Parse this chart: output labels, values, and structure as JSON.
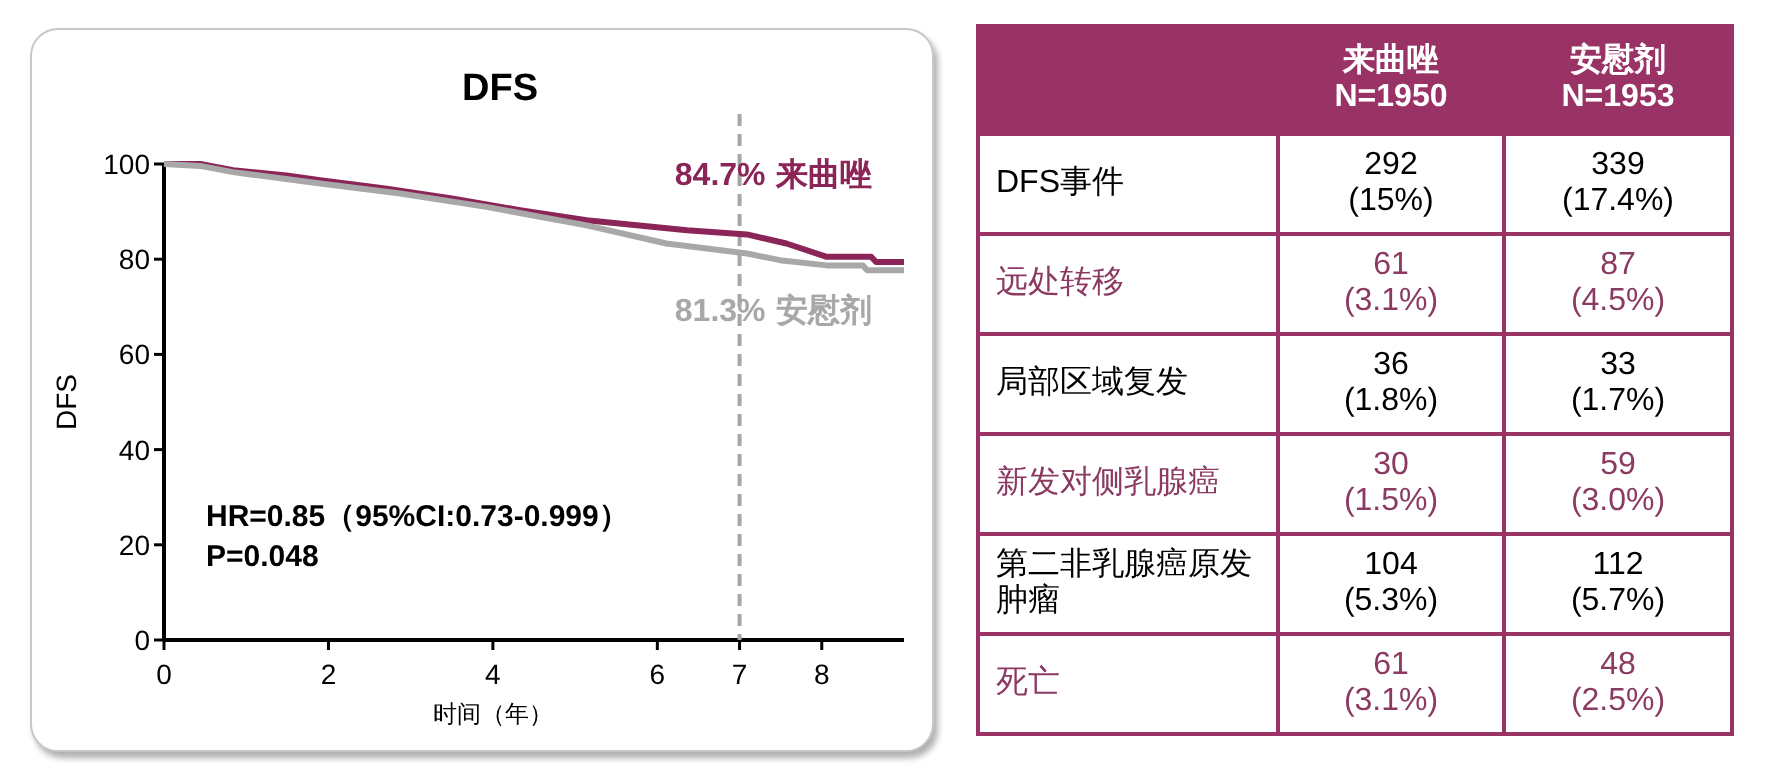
{
  "chart_data": [
    {
      "type": "line",
      "title": "DFS",
      "xlabel": "时间（年）",
      "ylabel": "DFS",
      "xlim": [
        0,
        9
      ],
      "ylim": [
        0,
        100
      ],
      "xticks": [
        0,
        2,
        4,
        6,
        7,
        8
      ],
      "yticks": [
        0,
        20,
        40,
        60,
        80,
        100
      ],
      "series": [
        {
          "name": "来曲唑",
          "color": "#8b2557",
          "x": [
            0,
            0.44,
            0.84,
            1.49,
            1.9,
            2.71,
            3.52,
            4.33,
            5.14,
            6.36,
            7.09,
            7.57,
            8.06,
            8.6,
            8.66,
            9.0
          ],
          "values": [
            100,
            100,
            98.7,
            97.6,
            96.6,
            94.8,
            92.7,
            90.3,
            88.2,
            86.1,
            85.2,
            83.3,
            80.5,
            80.5,
            79.4,
            79.4
          ]
        },
        {
          "name": "安慰剂",
          "color": "#a8a8a8",
          "x": [
            0,
            0.44,
            0.84,
            1.9,
            2.87,
            3.92,
            5.14,
            6.11,
            7.09,
            7.49,
            8.06,
            8.5,
            8.55,
            9.0
          ],
          "values": [
            100,
            99.6,
            98.3,
            95.9,
            93.8,
            91.0,
            87.1,
            83.3,
            81.2,
            79.8,
            78.7,
            78.7,
            77.7,
            77.7
          ]
        }
      ],
      "ref_lines": [
        {
          "axis": "x",
          "value": 7,
          "color": "#a6a6a6",
          "line_style": "dashed"
        }
      ],
      "annotations": [
        {
          "text": "84.7%",
          "x": 7,
          "y": 84.7
        },
        {
          "text": "81.3%",
          "x": 7,
          "y": 81.3
        },
        "HR=0.85（95%CI:0.73-0.999）",
        "P=0.048"
      ]
    },
    {
      "type": "other",
      "categories": [
        "来曲唑 N=1950",
        "安慰剂 N=1953"
      ],
      "y_categories": [
        "DFS事件",
        "远处转移",
        "局部区域复发",
        "新发对侧乳腺癌",
        "第二非乳腺癌原发肿瘤",
        "死亡"
      ],
      "cell_labels": [
        [
          "292 (15%)",
          "339 (17.4%)"
        ],
        [
          "61 (3.1%)",
          "87 (4.5%)"
        ],
        [
          "36 (1.8%)",
          "33 (1.7%)"
        ],
        [
          "30 (1.5%)",
          "59 (3.0%)"
        ],
        [
          "104 (5.3%)",
          "112 (5.7%)"
        ],
        [
          "61 (3.1%)",
          "48 (2.5%)"
        ]
      ]
    }
  ]
}
